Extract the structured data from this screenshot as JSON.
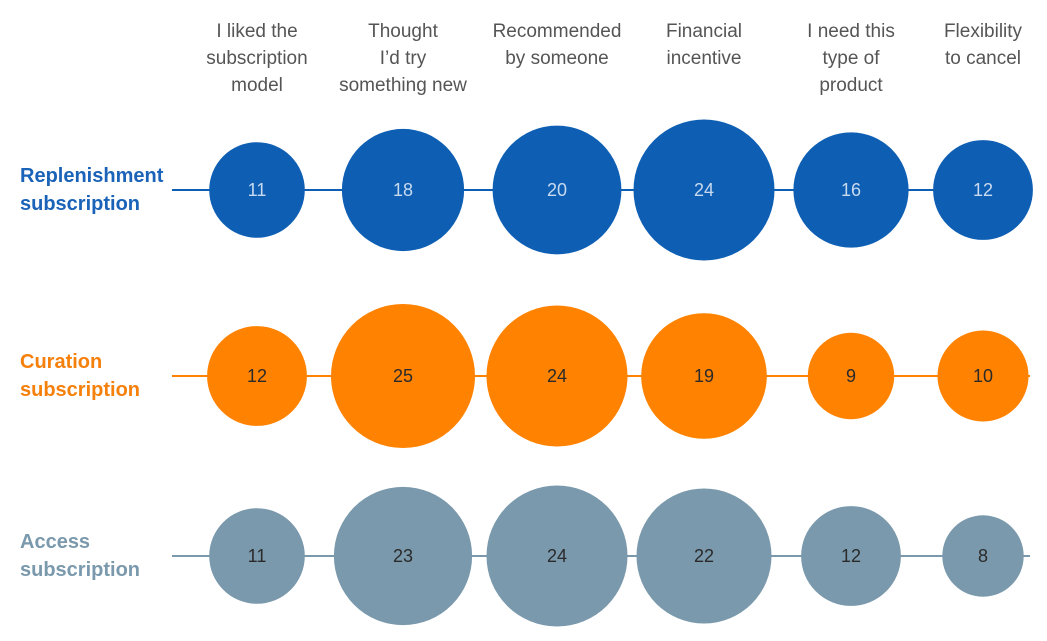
{
  "chart_data": {
    "type": "bubble-matrix",
    "categories": [
      [
        "I liked the",
        "subscription",
        "model"
      ],
      [
        "Thought",
        "I’d try",
        "something new"
      ],
      [
        "Recommended",
        "by someone"
      ],
      [
        "Financial",
        "incentive"
      ],
      [
        "I need this",
        "type of",
        "product"
      ],
      [
        "Flexibility",
        "to cancel"
      ]
    ],
    "series": [
      {
        "name": [
          "Replenishment",
          "subscription"
        ],
        "color": "#0E5FB4",
        "label_color": "#1A63B8",
        "value_color": "#C9DAF0",
        "values": [
          11,
          18,
          20,
          24,
          16,
          12
        ]
      },
      {
        "name": [
          "Curation",
          "subscription"
        ],
        "color": "#FF8200",
        "label_color": "#F5800B",
        "value_color": "#2a2a2a",
        "values": [
          12,
          25,
          24,
          19,
          9,
          10
        ]
      },
      {
        "name": [
          "Access",
          "subscription"
        ],
        "color": "#7A99AC",
        "label_color": "#7A99AC",
        "value_color": "#2a2a2a",
        "values": [
          11,
          23,
          24,
          22,
          12,
          8
        ]
      }
    ]
  }
}
